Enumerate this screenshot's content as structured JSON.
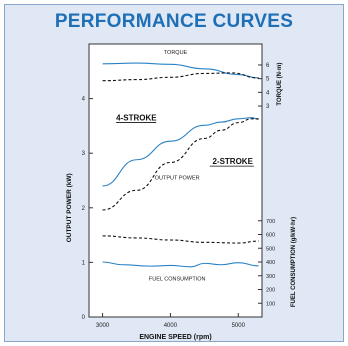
{
  "page": {
    "title": "PERFORMANCE CURVES",
    "colors": {
      "title": "#1f6fb6",
      "background": "#dfe8f4",
      "plot_background": "#ffffff",
      "solid_line": "#2a82c6",
      "dashed_line": "#111111"
    }
  },
  "chart_data": [
    {
      "type": "line",
      "title": "TORQUE",
      "xlabel": "ENGINE SPEED (rpm)",
      "ylabel": "TORQUE (N·m)",
      "xlim": [
        2800,
        5350
      ],
      "ylim": [
        2.2,
        6.8
      ],
      "x_ticks": [
        3000,
        4000,
        5000
      ],
      "y_ticks": [
        3,
        4,
        5,
        6
      ],
      "grid": false,
      "series": [
        {
          "name": "4-STROKE",
          "style": "solid",
          "x": [
            3000,
            3500,
            4000,
            4500,
            5000,
            5300
          ],
          "y": [
            6.08,
            6.14,
            6.05,
            5.72,
            5.3,
            5.05
          ]
        },
        {
          "name": "2-STROKE",
          "style": "dashed",
          "x": [
            3000,
            3500,
            4000,
            4500,
            4900,
            5300
          ],
          "y": [
            4.85,
            4.93,
            5.1,
            5.38,
            5.42,
            5.05
          ]
        }
      ]
    },
    {
      "type": "line",
      "title": "OUTPUT POWER",
      "xlabel": "ENGINE SPEED (rpm)",
      "ylabel": "OUTPUT POWER (kW)",
      "xlim": [
        2800,
        5350
      ],
      "ylim": [
        0,
        5
      ],
      "x_ticks": [
        3000,
        4000,
        5000
      ],
      "y_ticks": [
        0,
        1,
        2,
        3,
        4
      ],
      "grid": false,
      "annotations": [
        "4-STROKE",
        "2-STROKE"
      ],
      "series": [
        {
          "name": "4-STROKE",
          "style": "solid",
          "x": [
            3000,
            3500,
            4000,
            4500,
            4750,
            5000,
            5200,
            5300
          ],
          "y": [
            2.4,
            2.88,
            3.22,
            3.51,
            3.57,
            3.63,
            3.65,
            3.62
          ]
        },
        {
          "name": "2-STROKE",
          "style": "dashed",
          "x": [
            3000,
            3500,
            4000,
            4500,
            4750,
            5000,
            5200,
            5300
          ],
          "y": [
            1.96,
            2.32,
            2.83,
            3.27,
            3.42,
            3.56,
            3.63,
            3.63
          ]
        }
      ]
    },
    {
      "type": "line",
      "title": "FUEL CONSUMPTION",
      "xlabel": "ENGINE SPEED (rpm)",
      "ylabel": "FUEL CONSUMPTION (g/kW·hr)",
      "xlim": [
        2800,
        5350
      ],
      "ylim": [
        0,
        800
      ],
      "x_ticks": [
        3000,
        4000,
        5000
      ],
      "y_ticks": [
        100,
        200,
        300,
        400,
        500,
        600,
        700
      ],
      "grid": false,
      "series": [
        {
          "name": "4-STROKE",
          "style": "solid",
          "x": [
            3000,
            3300,
            3700,
            4000,
            4300,
            4500,
            4750,
            5000,
            5300
          ],
          "y": [
            400,
            380,
            370,
            375,
            365,
            390,
            380,
            395,
            372
          ]
        },
        {
          "name": "2-STROKE",
          "style": "dashed",
          "x": [
            3000,
            3500,
            4000,
            4500,
            5000,
            5300
          ],
          "y": [
            590,
            575,
            560,
            543,
            538,
            552
          ]
        }
      ]
    }
  ]
}
